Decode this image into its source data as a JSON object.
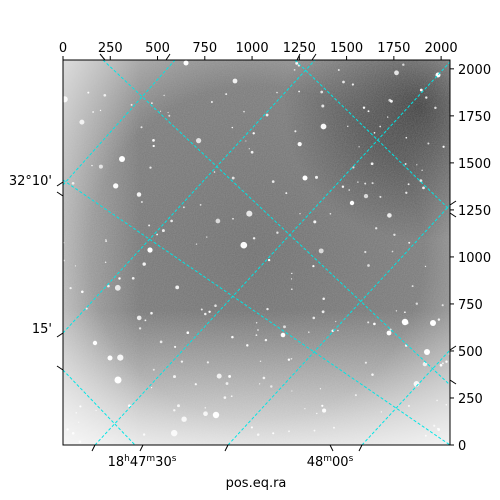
{
  "figure": {
    "xlabel": "pos.eq.ra",
    "ylabel": "",
    "image_style": "grayscale-astronomical-frame",
    "grid_color": "#00e5e5"
  },
  "pixel_axes": {
    "top_ticks": [
      "0",
      "250",
      "500",
      "750",
      "1000",
      "1250",
      "1500",
      "1750",
      "2000"
    ],
    "right_ticks": [
      "0",
      "250",
      "500",
      "750",
      "1000",
      "1250",
      "1500",
      "1750",
      "2000"
    ]
  },
  "world_axes": {
    "ra_ticks": [
      {
        "h": "18",
        "hs": "h",
        "m": "47",
        "ms": "m",
        "s": "30",
        "ss": "s"
      },
      {
        "h": "",
        "hs": "",
        "m": "48",
        "ms": "m",
        "s": "00",
        "ss": "s"
      }
    ],
    "dec_ticks": [
      "32°10'",
      "15'"
    ]
  }
}
